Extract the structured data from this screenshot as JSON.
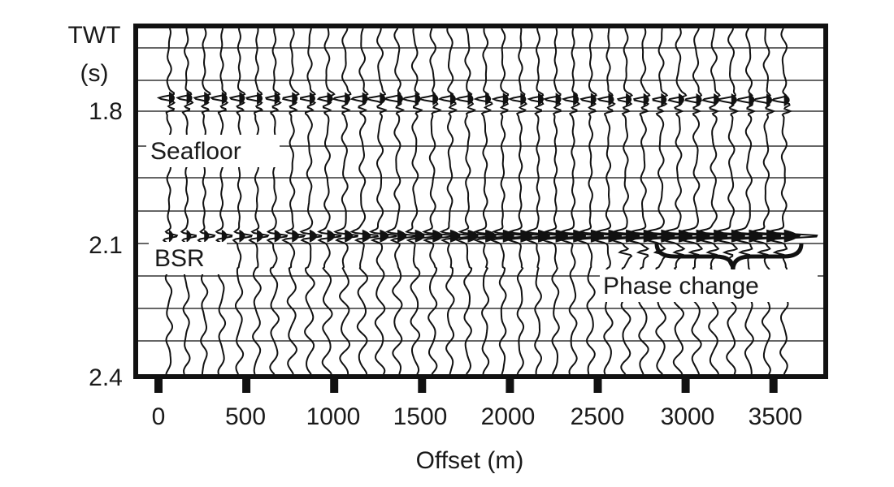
{
  "y_axis": {
    "title_line1": "TWT",
    "title_line2": "(s)",
    "ticks": [
      {
        "label": "1.8",
        "value": 1.8
      },
      {
        "label": "2.1",
        "value": 2.1
      },
      {
        "label": "2.4",
        "value": 2.4
      }
    ],
    "range": [
      1.71,
      2.4
    ]
  },
  "x_axis": {
    "title": "Offset (m)",
    "ticks": [
      {
        "label": "0",
        "value": 0
      },
      {
        "label": "500",
        "value": 500
      },
      {
        "label": "1000",
        "value": 1000
      },
      {
        "label": "1500",
        "value": 1500
      },
      {
        "label": "2000",
        "value": 2000
      },
      {
        "label": "2500",
        "value": 2500
      },
      {
        "label": "3000",
        "value": 3000
      },
      {
        "label": "3500",
        "value": 3500
      }
    ],
    "range": [
      -120,
      3800
    ]
  },
  "annotations": {
    "seafloor": "Seafloor",
    "bsr": "BSR",
    "phase_change": "Phase change"
  },
  "reflectors": [
    {
      "name": "seafloor",
      "twt": 1.77
    },
    {
      "name": "bsr",
      "twt": 2.07
    }
  ],
  "traces": {
    "first_offset": 60,
    "spacing": 100,
    "count": 36
  }
}
